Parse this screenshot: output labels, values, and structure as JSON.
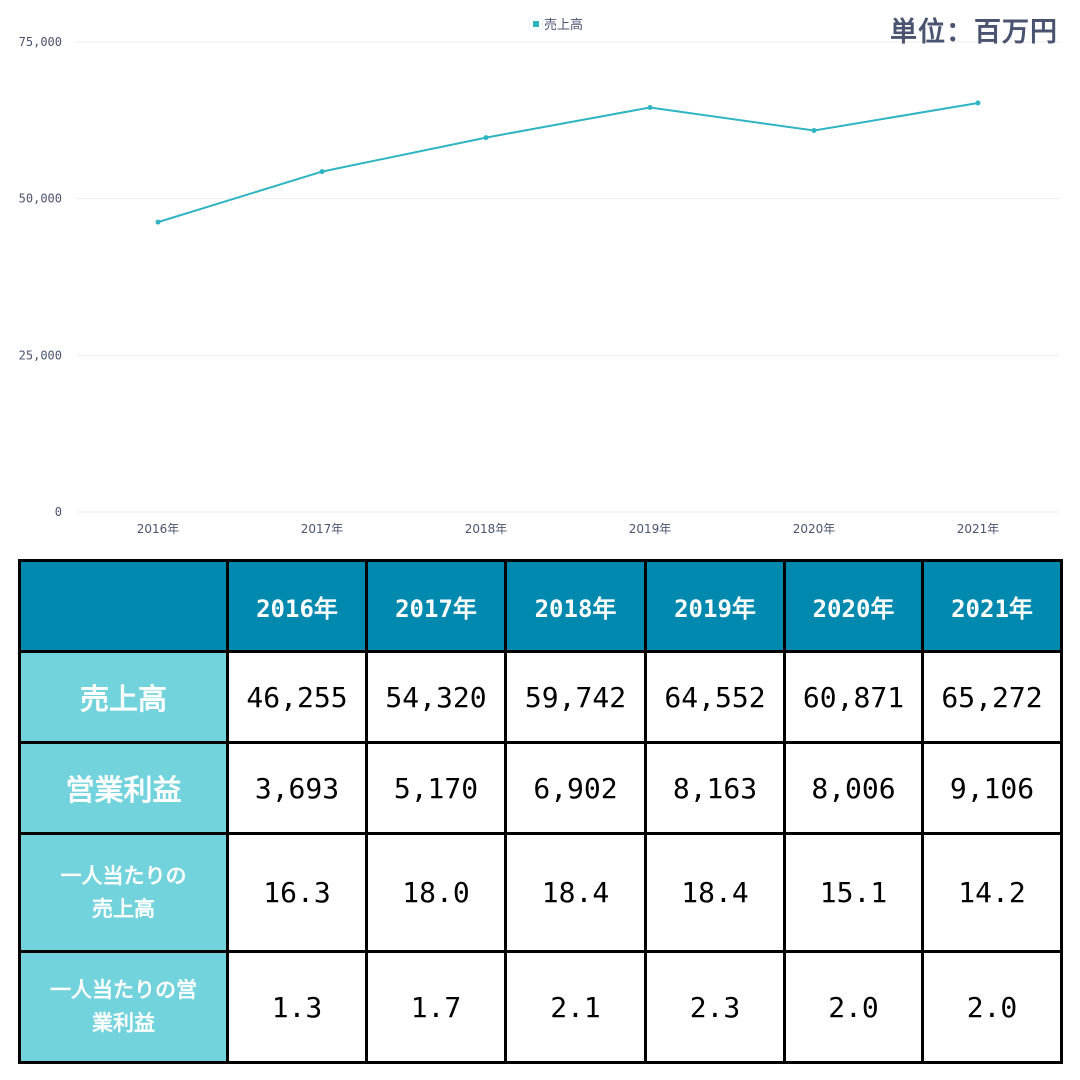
{
  "unit_label": "単位：百万円",
  "chart_data": {
    "type": "line",
    "legend_position": "top-center",
    "grid": true,
    "categories": [
      "2016年",
      "2017年",
      "2018年",
      "2019年",
      "2020年",
      "2021年"
    ],
    "series": [
      {
        "name": "売上高",
        "values": [
          46255,
          54320,
          59742,
          64552,
          60871,
          65272
        ],
        "color": "#2fb4c2"
      }
    ],
    "ylim": [
      0,
      75000
    ],
    "yticks": [
      "0",
      "25,000",
      "50,000",
      "75,000"
    ],
    "ytick_values": [
      0,
      25000,
      50000,
      75000
    ],
    "title": "",
    "xlabel": "",
    "ylabel": ""
  },
  "table": {
    "years": [
      "2016年",
      "2017年",
      "2018年",
      "2019年",
      "2020年",
      "2021年"
    ],
    "rows": [
      {
        "label": "売上高",
        "values": [
          "46,255",
          "54,320",
          "59,742",
          "64,552",
          "60,871",
          "65,272"
        ]
      },
      {
        "label": "営業利益",
        "values": [
          "3,693",
          "5,170",
          "6,902",
          "8,163",
          "8,006",
          "9,106"
        ]
      },
      {
        "label_line1": "一人当たりの",
        "label_line2": "売上高",
        "values": [
          "16.3",
          "18.0",
          "18.4",
          "18.4",
          "15.1",
          "14.2"
        ]
      },
      {
        "label_line1": "一人当たりの営",
        "label_line2": "業利益",
        "values": [
          "1.3",
          "1.7",
          "2.1",
          "2.3",
          "2.0",
          "2.0"
        ]
      }
    ]
  },
  "colors": {
    "line": "#2fb4c2",
    "header_bg": "#0089af",
    "row_header_bg": "#72d3dd",
    "axis_text": "#4a5470"
  }
}
